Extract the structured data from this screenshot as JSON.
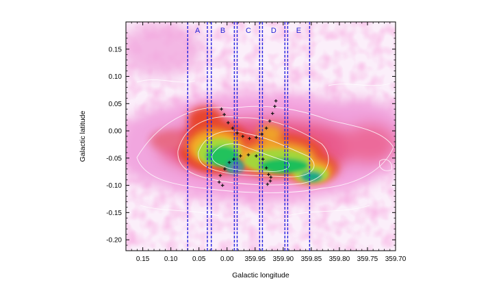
{
  "chart_data": {
    "type": "heatmap",
    "title": "",
    "xlabel": "Galactic longitude",
    "ylabel": "Galactic latitude",
    "xlim": [
      0.18,
      -0.3
    ],
    "ylim": [
      -0.22,
      0.2
    ],
    "x_ticks": [
      {
        "value": 0.15,
        "label": "0.15"
      },
      {
        "value": 0.1,
        "label": "0.10"
      },
      {
        "value": 0.05,
        "label": "0.05"
      },
      {
        "value": 0.0,
        "label": "0.00"
      },
      {
        "value": -0.05,
        "label": "359.95"
      },
      {
        "value": -0.1,
        "label": "359.90"
      },
      {
        "value": -0.15,
        "label": "359.85"
      },
      {
        "value": -0.2,
        "label": "359.80"
      },
      {
        "value": -0.25,
        "label": "359.75"
      },
      {
        "value": -0.3,
        "label": "359.70"
      }
    ],
    "y_ticks": [
      {
        "value": 0.15,
        "label": "0.15"
      },
      {
        "value": 0.1,
        "label": "0.10"
      },
      {
        "value": 0.05,
        "label": "0.05"
      },
      {
        "value": 0.0,
        "label": "0.00"
      },
      {
        "value": -0.05,
        "label": "-0.05"
      },
      {
        "value": -0.1,
        "label": "-0.10"
      },
      {
        "value": -0.15,
        "label": "-0.15"
      },
      {
        "value": -0.2,
        "label": "-0.20"
      }
    ],
    "regions": [
      {
        "label": "A",
        "x_start": 0.07,
        "x_end": 0.035
      },
      {
        "label": "B",
        "x_start": 0.028,
        "x_end": -0.013
      },
      {
        "label": "C",
        "x_start": -0.018,
        "x_end": -0.058
      },
      {
        "label": "D",
        "x_start": -0.063,
        "x_end": -0.103
      },
      {
        "label": "E",
        "x_start": -0.108,
        "x_end": -0.147
      }
    ],
    "orbit_points": [
      {
        "x": 0.01,
        "y": 0.04
      },
      {
        "x": 0.005,
        "y": 0.03
      },
      {
        "x": -0.002,
        "y": 0.015
      },
      {
        "x": -0.01,
        "y": 0.005
      },
      {
        "x": -0.018,
        "y": -0.004
      },
      {
        "x": -0.028,
        "y": -0.01
      },
      {
        "x": -0.04,
        "y": -0.014
      },
      {
        "x": -0.052,
        "y": -0.012
      },
      {
        "x": -0.062,
        "y": -0.006
      },
      {
        "x": -0.07,
        "y": 0.005
      },
      {
        "x": -0.076,
        "y": 0.018
      },
      {
        "x": -0.081,
        "y": 0.032
      },
      {
        "x": -0.085,
        "y": 0.045
      },
      {
        "x": -0.087,
        "y": 0.055
      },
      {
        "x": 0.012,
        "y": -0.082
      },
      {
        "x": 0.004,
        "y": -0.07
      },
      {
        "x": -0.004,
        "y": -0.058
      },
      {
        "x": -0.012,
        "y": -0.052
      },
      {
        "x": -0.024,
        "y": -0.046
      },
      {
        "x": -0.038,
        "y": -0.044
      },
      {
        "x": -0.052,
        "y": -0.046
      },
      {
        "x": -0.064,
        "y": -0.052
      },
      {
        "x": -0.07,
        "y": -0.068
      },
      {
        "x": -0.074,
        "y": -0.08
      },
      {
        "x": -0.077,
        "y": -0.092
      },
      {
        "x": 0.014,
        "y": -0.094
      },
      {
        "x": 0.008,
        "y": -0.1
      },
      {
        "x": -0.072,
        "y": -0.098
      },
      {
        "x": -0.078,
        "y": -0.085
      }
    ],
    "colorscale": [
      "#fbeefa",
      "#f8c6ec",
      "#f28ad6",
      "#e94f85",
      "#e63a2a",
      "#f2ae24",
      "#a9d635",
      "#1fc25a",
      "#1faa7f",
      "#6a7fa6"
    ],
    "grid": false,
    "legend": "none"
  }
}
